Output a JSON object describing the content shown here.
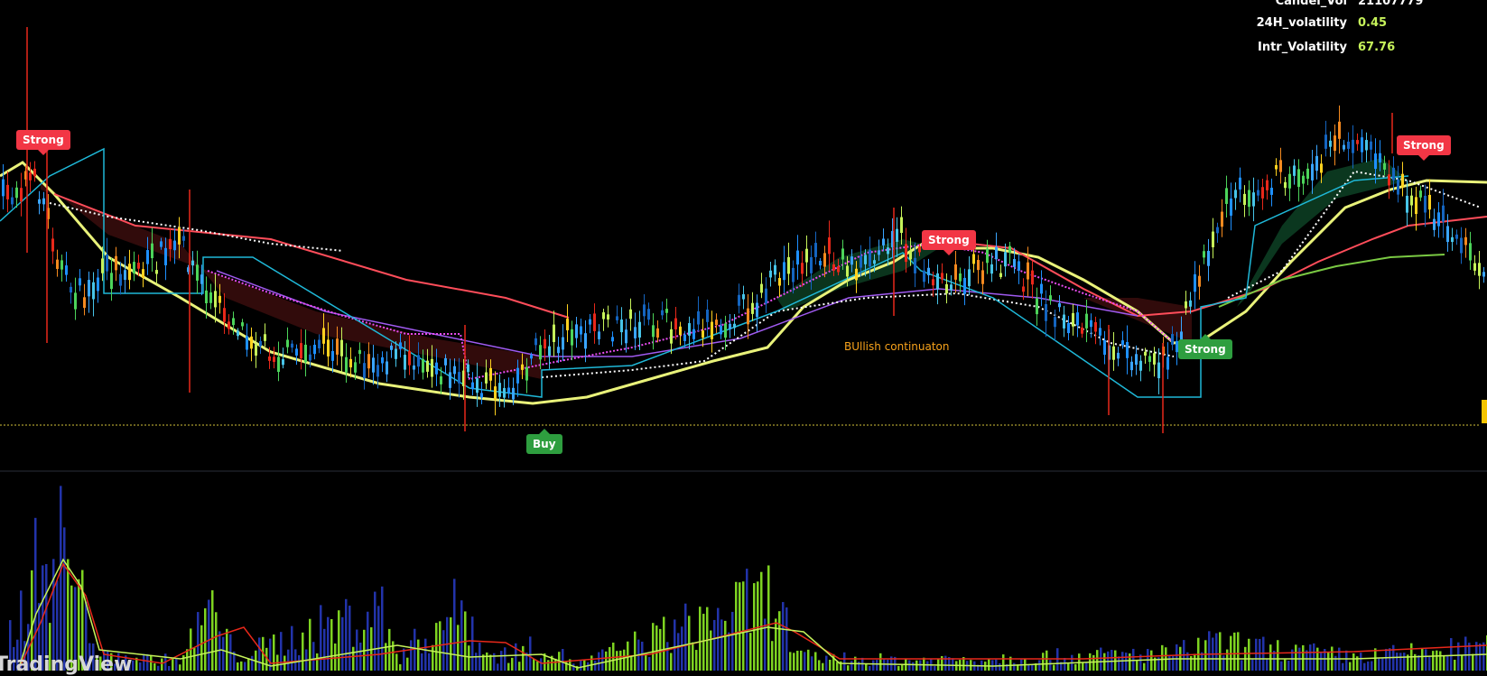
{
  "stats": [
    {
      "label": "Candel_Vol",
      "value": "21107779",
      "color": "#ffffff"
    },
    {
      "label": "24H_volatility",
      "value": "0.45",
      "color": "#c6f25a"
    },
    {
      "label": "Intr_Volatility",
      "value": "67.76",
      "color": "#c6f25a"
    }
  ],
  "signals": [
    {
      "text": "Strong",
      "kind": "sell"
    },
    {
      "text": "Strong",
      "kind": "sell"
    },
    {
      "text": "Strong",
      "kind": "sell"
    },
    {
      "text": "Strong",
      "kind": "buy"
    },
    {
      "text": "Buy",
      "kind": "buy"
    }
  ],
  "annotation": {
    "text": "BUllish continuaton",
    "color": "#f7a21b"
  },
  "watermark": "TradingView",
  "colors": {
    "background": "#000000",
    "bull_candle": "#ffd21f",
    "bear_candle": "#1e90ff",
    "sell_signal": "#f23645",
    "buy_signal": "#2e9e3f",
    "support_line": "#d4c23a"
  }
}
